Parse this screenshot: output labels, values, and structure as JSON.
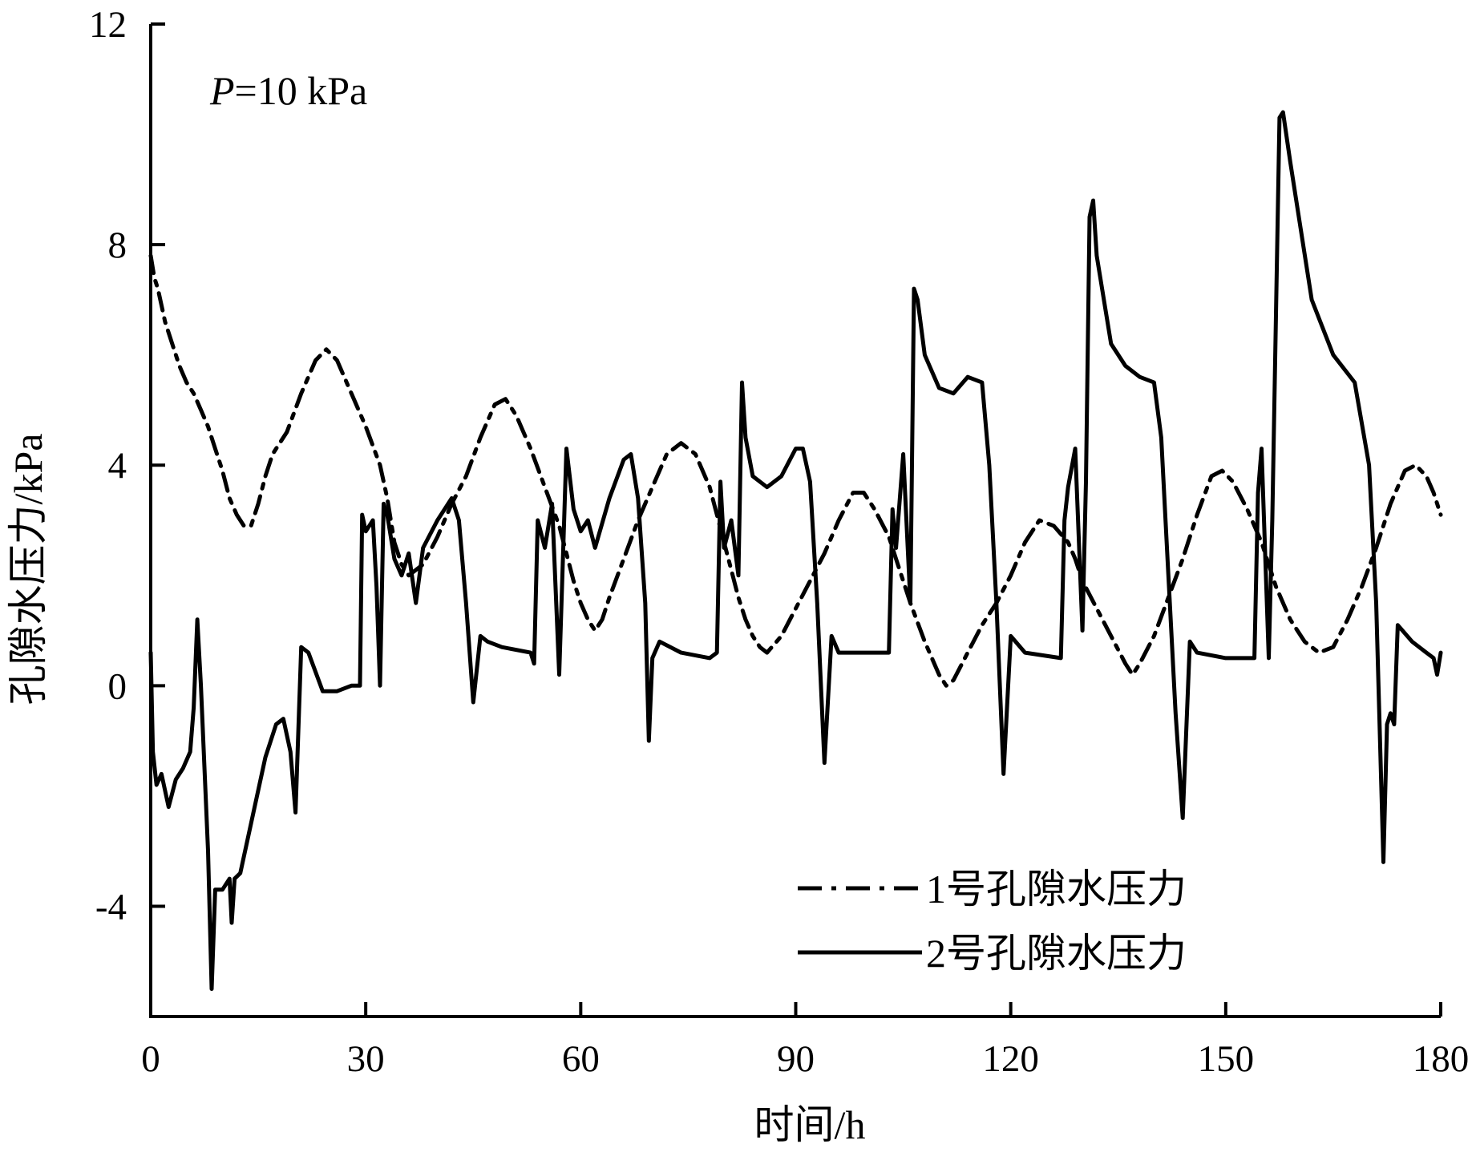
{
  "chart_data": {
    "type": "line",
    "title": "",
    "annotation": {
      "prefix": "P",
      "text": "=10 kPa"
    },
    "xlabel": "时间/h",
    "ylabel": "孔隙水压力/kPa",
    "xlim": [
      0,
      180
    ],
    "ylim": [
      -6,
      12
    ],
    "xticks": [
      0,
      30,
      60,
      90,
      120,
      150,
      180
    ],
    "xtick_labels": [
      "0",
      "30",
      "60",
      "90",
      "120",
      "150",
      "180"
    ],
    "yticks": [
      -4,
      0,
      4,
      8,
      12
    ],
    "ytick_labels": [
      "-4",
      "0",
      "4",
      "8",
      "12"
    ],
    "grid": false,
    "legend_position": "bottom-right",
    "series": [
      {
        "name": "1号孔隙水压力",
        "style": "dash-dot",
        "color": "#000000",
        "points": [
          [
            0,
            7.8
          ],
          [
            0.5,
            7.4
          ],
          [
            1,
            7.2
          ],
          [
            2,
            6.6
          ],
          [
            3,
            6.2
          ],
          [
            4,
            5.8
          ],
          [
            5,
            5.5
          ],
          [
            6,
            5.3
          ],
          [
            7,
            5.0
          ],
          [
            8,
            4.7
          ],
          [
            9,
            4.3
          ],
          [
            10,
            3.9
          ],
          [
            11,
            3.4
          ],
          [
            12,
            3.1
          ],
          [
            13,
            2.9
          ],
          [
            14,
            2.9
          ],
          [
            15,
            3.3
          ],
          [
            16,
            3.8
          ],
          [
            17,
            4.2
          ],
          [
            19,
            4.6
          ],
          [
            21,
            5.3
          ],
          [
            23,
            5.9
          ],
          [
            24.5,
            6.1
          ],
          [
            26,
            5.9
          ],
          [
            28,
            5.3
          ],
          [
            30,
            4.7
          ],
          [
            32,
            4.0
          ],
          [
            33,
            3.4
          ],
          [
            34,
            2.6
          ],
          [
            35,
            2.2
          ],
          [
            36,
            2.0
          ],
          [
            38,
            2.2
          ],
          [
            40,
            2.7
          ],
          [
            42,
            3.3
          ],
          [
            44,
            3.8
          ],
          [
            46,
            4.5
          ],
          [
            48,
            5.1
          ],
          [
            49.5,
            5.2
          ],
          [
            51,
            4.9
          ],
          [
            53,
            4.3
          ],
          [
            55,
            3.6
          ],
          [
            57,
            2.9
          ],
          [
            58,
            2.4
          ],
          [
            59,
            1.9
          ],
          [
            60,
            1.5
          ],
          [
            61,
            1.2
          ],
          [
            62,
            1.0
          ],
          [
            63,
            1.2
          ],
          [
            64,
            1.6
          ],
          [
            66,
            2.3
          ],
          [
            68,
            3.0
          ],
          [
            70,
            3.6
          ],
          [
            72,
            4.2
          ],
          [
            74,
            4.4
          ],
          [
            76,
            4.2
          ],
          [
            78,
            3.6
          ],
          [
            79,
            3.1
          ],
          [
            80,
            2.6
          ],
          [
            81,
            2.1
          ],
          [
            82,
            1.6
          ],
          [
            83,
            1.2
          ],
          [
            84,
            0.9
          ],
          [
            85,
            0.7
          ],
          [
            86,
            0.6
          ],
          [
            88,
            0.9
          ],
          [
            90,
            1.4
          ],
          [
            92,
            1.9
          ],
          [
            94,
            2.4
          ],
          [
            96,
            3.0
          ],
          [
            98,
            3.5
          ],
          [
            99.5,
            3.5
          ],
          [
            101,
            3.2
          ],
          [
            103,
            2.7
          ],
          [
            104,
            2.3
          ],
          [
            106,
            1.5
          ],
          [
            108,
            0.8
          ],
          [
            110,
            0.2
          ],
          [
            111,
            0.0
          ],
          [
            112,
            0.1
          ],
          [
            114,
            0.6
          ],
          [
            116,
            1.1
          ],
          [
            118,
            1.5
          ],
          [
            120,
            2.0
          ],
          [
            122,
            2.6
          ],
          [
            124,
            3.0
          ],
          [
            126,
            2.9
          ],
          [
            128,
            2.6
          ],
          [
            129,
            2.3
          ],
          [
            130,
            1.9
          ],
          [
            132,
            1.4
          ],
          [
            134,
            0.9
          ],
          [
            136,
            0.4
          ],
          [
            137,
            0.2
          ],
          [
            138,
            0.4
          ],
          [
            140,
            0.9
          ],
          [
            142,
            1.6
          ],
          [
            144,
            2.3
          ],
          [
            146,
            3.1
          ],
          [
            148,
            3.8
          ],
          [
            149.5,
            3.9
          ],
          [
            151,
            3.7
          ],
          [
            153,
            3.2
          ],
          [
            155,
            2.6
          ],
          [
            157,
            1.8
          ],
          [
            159,
            1.2
          ],
          [
            161,
            0.8
          ],
          [
            163,
            0.6
          ],
          [
            165,
            0.7
          ],
          [
            167,
            1.2
          ],
          [
            169,
            1.8
          ],
          [
            171,
            2.5
          ],
          [
            173,
            3.3
          ],
          [
            175,
            3.9
          ],
          [
            176.5,
            4.0
          ],
          [
            178,
            3.8
          ],
          [
            179,
            3.5
          ],
          [
            180,
            3.1
          ]
        ]
      },
      {
        "name": "2号孔隙水压力",
        "style": "solid",
        "color": "#000000",
        "points": [
          [
            0,
            0.6
          ],
          [
            0.3,
            -1.2
          ],
          [
            0.8,
            -1.8
          ],
          [
            1.5,
            -1.6
          ],
          [
            2.5,
            -2.2
          ],
          [
            3.5,
            -1.7
          ],
          [
            4.5,
            -1.5
          ],
          [
            5.5,
            -1.2
          ],
          [
            6,
            -0.4
          ],
          [
            6.5,
            1.2
          ],
          [
            7,
            0.0
          ],
          [
            8,
            -3.0
          ],
          [
            8.5,
            -5.5
          ],
          [
            9,
            -3.7
          ],
          [
            10,
            -3.7
          ],
          [
            11,
            -3.5
          ],
          [
            11.3,
            -4.3
          ],
          [
            11.7,
            -3.5
          ],
          [
            12.5,
            -3.4
          ],
          [
            14,
            -2.5
          ],
          [
            16,
            -1.3
          ],
          [
            17.5,
            -0.7
          ],
          [
            18.5,
            -0.6
          ],
          [
            19.5,
            -1.2
          ],
          [
            20.2,
            -2.3
          ],
          [
            21,
            0.7
          ],
          [
            22,
            0.6
          ],
          [
            24,
            -0.1
          ],
          [
            26,
            -0.1
          ],
          [
            28,
            0.0
          ],
          [
            29.2,
            0.0
          ],
          [
            29.5,
            3.1
          ],
          [
            30,
            2.8
          ],
          [
            31,
            3.0
          ],
          [
            31.5,
            1.8
          ],
          [
            32,
            0.0
          ],
          [
            32.5,
            3.3
          ],
          [
            33,
            3.1
          ],
          [
            34,
            2.3
          ],
          [
            35,
            2.0
          ],
          [
            36,
            2.4
          ],
          [
            37,
            1.5
          ],
          [
            38,
            2.5
          ],
          [
            40,
            3.0
          ],
          [
            42,
            3.4
          ],
          [
            43,
            3.0
          ],
          [
            44,
            1.5
          ],
          [
            45,
            -0.3
          ],
          [
            46,
            0.9
          ],
          [
            47,
            0.8
          ],
          [
            49,
            0.7
          ],
          [
            53,
            0.6
          ],
          [
            53.5,
            0.4
          ],
          [
            54,
            3.0
          ],
          [
            55,
            2.5
          ],
          [
            56,
            3.3
          ],
          [
            57,
            0.2
          ],
          [
            58,
            4.3
          ],
          [
            59,
            3.2
          ],
          [
            60,
            2.8
          ],
          [
            61,
            3.0
          ],
          [
            62,
            2.5
          ],
          [
            64,
            3.4
          ],
          [
            66,
            4.1
          ],
          [
            67,
            4.2
          ],
          [
            68,
            3.4
          ],
          [
            69,
            1.5
          ],
          [
            69.5,
            -1.0
          ],
          [
            70,
            0.5
          ],
          [
            71,
            0.8
          ],
          [
            74,
            0.6
          ],
          [
            78,
            0.5
          ],
          [
            79,
            0.6
          ],
          [
            79.5,
            3.7
          ],
          [
            80,
            2.5
          ],
          [
            81,
            3.0
          ],
          [
            82,
            2.0
          ],
          [
            82.5,
            5.5
          ],
          [
            83,
            4.5
          ],
          [
            84,
            3.8
          ],
          [
            86,
            3.6
          ],
          [
            88,
            3.8
          ],
          [
            90,
            4.3
          ],
          [
            91,
            4.3
          ],
          [
            92,
            3.7
          ],
          [
            93,
            1.5
          ],
          [
            94,
            -1.4
          ],
          [
            95,
            0.9
          ],
          [
            96,
            0.6
          ],
          [
            100,
            0.6
          ],
          [
            103,
            0.6
          ],
          [
            103.5,
            3.2
          ],
          [
            104,
            2.5
          ],
          [
            105,
            4.2
          ],
          [
            106,
            1.5
          ],
          [
            106.5,
            7.2
          ],
          [
            107,
            7.0
          ],
          [
            108,
            6.0
          ],
          [
            110,
            5.4
          ],
          [
            112,
            5.3
          ],
          [
            114,
            5.6
          ],
          [
            116,
            5.5
          ],
          [
            117,
            4.0
          ],
          [
            118,
            1.5
          ],
          [
            119,
            -1.6
          ],
          [
            120,
            0.9
          ],
          [
            122,
            0.6
          ],
          [
            127,
            0.5
          ],
          [
            127.5,
            3.0
          ],
          [
            128,
            3.6
          ],
          [
            129,
            4.3
          ],
          [
            130,
            1.0
          ],
          [
            130.5,
            3.7
          ],
          [
            131,
            8.5
          ],
          [
            131.5,
            8.8
          ],
          [
            132,
            7.8
          ],
          [
            134,
            6.2
          ],
          [
            136,
            5.8
          ],
          [
            138,
            5.6
          ],
          [
            140,
            5.5
          ],
          [
            141,
            4.5
          ],
          [
            142,
            2.0
          ],
          [
            143,
            -0.5
          ],
          [
            144,
            -2.4
          ],
          [
            145,
            0.8
          ],
          [
            146,
            0.6
          ],
          [
            150,
            0.5
          ],
          [
            154,
            0.5
          ],
          [
            154.5,
            3.5
          ],
          [
            155,
            4.3
          ],
          [
            156,
            0.5
          ],
          [
            156.5,
            3.0
          ],
          [
            157.5,
            10.3
          ],
          [
            158,
            10.4
          ],
          [
            159,
            9.5
          ],
          [
            162,
            7.0
          ],
          [
            165,
            6.0
          ],
          [
            168,
            5.5
          ],
          [
            170,
            4.0
          ],
          [
            171,
            1.5
          ],
          [
            172,
            -3.2
          ],
          [
            172.5,
            -0.7
          ],
          [
            173,
            -0.5
          ],
          [
            173.5,
            -0.7
          ],
          [
            174,
            1.1
          ],
          [
            176,
            0.8
          ],
          [
            178,
            0.6
          ],
          [
            179,
            0.5
          ],
          [
            179.5,
            0.2
          ],
          [
            180,
            0.6
          ]
        ]
      }
    ]
  }
}
